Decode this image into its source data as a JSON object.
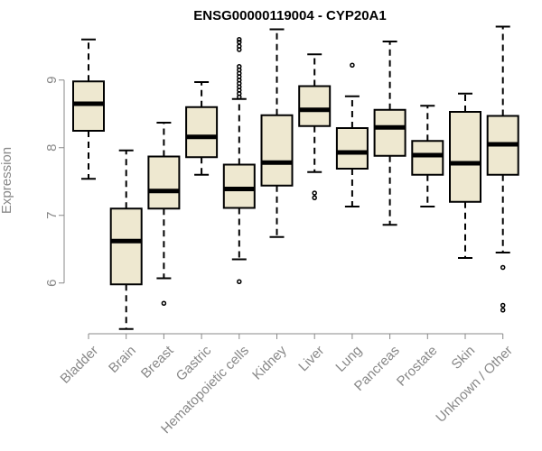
{
  "chart_data": {
    "type": "boxplot",
    "title": "ENSG00000119004 - CYP20A1",
    "ylabel": "Expression",
    "xlabel": "",
    "ylim": [
      5.25,
      9.85
    ],
    "yticks": [
      6,
      7,
      8,
      9
    ],
    "box_fill": "#EEE8D0",
    "line_color": "#000000",
    "label_color": "#888888",
    "categories": [
      "Bladder",
      "Brain",
      "Breast",
      "Gastric",
      "Hematopoietic cells",
      "Kidney",
      "Liver",
      "Lung",
      "Pancreas",
      "Prostate",
      "Skin",
      "Unknown / Other"
    ],
    "boxes": [
      {
        "whisker_low": 7.54,
        "q1": 8.25,
        "median": 8.65,
        "q3": 8.98,
        "whisker_high": 9.6,
        "outliers": []
      },
      {
        "whisker_low": 5.32,
        "q1": 5.98,
        "median": 6.62,
        "q3": 7.1,
        "whisker_high": 7.96,
        "outliers": []
      },
      {
        "whisker_low": 6.07,
        "q1": 7.1,
        "median": 7.36,
        "q3": 7.87,
        "whisker_high": 8.37,
        "outliers": [
          5.7
        ]
      },
      {
        "whisker_low": 7.6,
        "q1": 7.86,
        "median": 8.16,
        "q3": 8.6,
        "whisker_high": 8.97,
        "outliers": []
      },
      {
        "whisker_low": 6.35,
        "q1": 7.11,
        "median": 7.39,
        "q3": 7.75,
        "whisker_high": 8.72,
        "outliers": [
          6.02,
          8.75,
          8.8,
          8.85,
          8.9,
          8.95,
          9.0,
          9.05,
          9.1,
          9.15,
          9.2,
          9.45,
          9.5,
          9.56,
          9.6
        ]
      },
      {
        "whisker_low": 6.68,
        "q1": 7.44,
        "median": 7.78,
        "q3": 8.48,
        "whisker_high": 9.75,
        "outliers": []
      },
      {
        "whisker_low": 7.64,
        "q1": 8.32,
        "median": 8.56,
        "q3": 8.91,
        "whisker_high": 9.38,
        "outliers": [
          7.26,
          7.33
        ]
      },
      {
        "whisker_low": 7.13,
        "q1": 7.69,
        "median": 7.93,
        "q3": 8.29,
        "whisker_high": 8.76,
        "outliers": [
          9.22
        ]
      },
      {
        "whisker_low": 6.86,
        "q1": 7.88,
        "median": 8.3,
        "q3": 8.56,
        "whisker_high": 9.57,
        "outliers": []
      },
      {
        "whisker_low": 7.13,
        "q1": 7.6,
        "median": 7.89,
        "q3": 8.1,
        "whisker_high": 8.62,
        "outliers": []
      },
      {
        "whisker_low": 6.37,
        "q1": 7.2,
        "median": 7.77,
        "q3": 8.53,
        "whisker_high": 8.8,
        "outliers": []
      },
      {
        "whisker_low": 6.45,
        "q1": 7.6,
        "median": 8.05,
        "q3": 8.47,
        "whisker_high": 9.79,
        "outliers": [
          6.23,
          5.6,
          5.67
        ]
      }
    ]
  }
}
